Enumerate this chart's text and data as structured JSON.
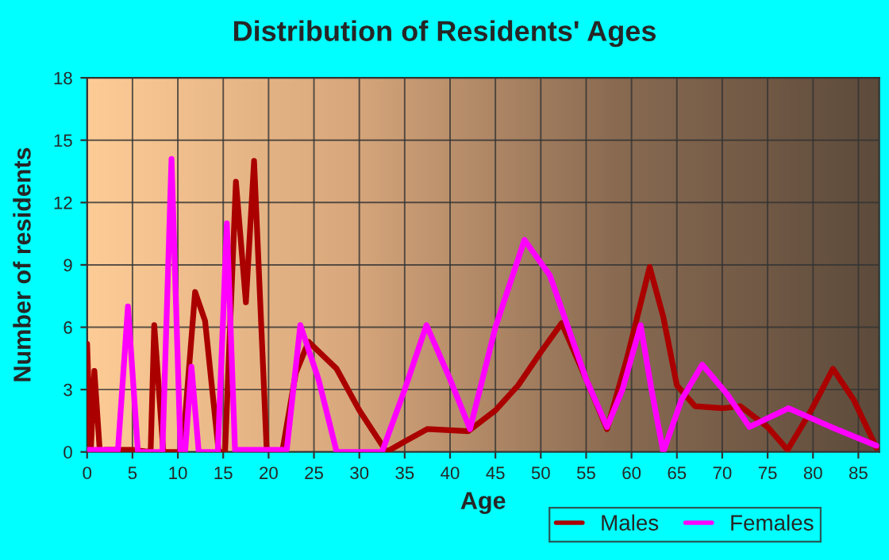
{
  "chart_data": {
    "type": "line",
    "title": "Distribution of Residents' Ages",
    "xlabel": "Age",
    "ylabel": "Number of residents",
    "xlim": [
      0,
      87.3
    ],
    "xticks": [
      0,
      5,
      10,
      15,
      20,
      25,
      30,
      35,
      40,
      45,
      50,
      55,
      60,
      65,
      70,
      75,
      80,
      85
    ],
    "ylim": [
      0,
      18
    ],
    "yticks": [
      0,
      3,
      6,
      9,
      12,
      15,
      18
    ],
    "grid": true,
    "legend": "bottom right",
    "series": [
      {
        "name": "Males",
        "color": "#aa0000",
        "x": [
          0,
          0.4,
          0.8,
          1.4,
          2,
          5,
          7,
          7.4,
          8.4,
          10.5,
          11.9,
          13,
          14.5,
          15.2,
          16.4,
          17.5,
          18.4,
          19.8,
          21.5,
          23,
          24.4,
          27.5,
          30,
          33,
          35,
          37.5,
          42,
          45,
          47.5,
          50,
          52.3,
          55,
          57.3,
          59.5,
          62,
          63.5,
          65,
          67,
          70,
          72,
          75,
          77.2,
          79.8,
          82.2,
          84.5,
          87
        ],
        "values": [
          5.2,
          0,
          3.9,
          0,
          0.1,
          0.1,
          0,
          6.1,
          0,
          0,
          7.7,
          6.3,
          0,
          0,
          13,
          7.2,
          14,
          0,
          0,
          3.8,
          5.3,
          4,
          2,
          0,
          0.5,
          1.1,
          1,
          2,
          3.2,
          4.8,
          6.2,
          3.5,
          1.1,
          4.5,
          8.9,
          6.5,
          3.2,
          2.2,
          2.1,
          2.2,
          1.2,
          0.1,
          2,
          4,
          2.5,
          0.2
        ]
      },
      {
        "name": "Females",
        "color": "#ff00ff",
        "x": [
          0,
          3.4,
          4.5,
          5.6,
          8.3,
          9.3,
          10.3,
          10.8,
          11.5,
          12.3,
          14.4,
          15.4,
          16.3,
          22,
          23.5,
          25.5,
          27.5,
          32.5,
          35,
          37.4,
          40,
          42.2,
          45,
          48.2,
          51,
          53,
          55,
          57.3,
          59,
          61,
          62.2,
          63.5,
          65.5,
          67.8,
          70.5,
          73,
          77.3,
          82,
          87
        ],
        "values": [
          0.1,
          0.1,
          7,
          0,
          0,
          14.1,
          0,
          0,
          4.1,
          0,
          0,
          11,
          0.1,
          0.1,
          6.1,
          3.5,
          0,
          0,
          3,
          6.1,
          3.5,
          1.1,
          6,
          10.2,
          8.5,
          6,
          3.5,
          1.2,
          3,
          6.1,
          3,
          0,
          2.5,
          4.2,
          2.8,
          1.2,
          2.1,
          1.2,
          0.3
        ]
      }
    ]
  }
}
